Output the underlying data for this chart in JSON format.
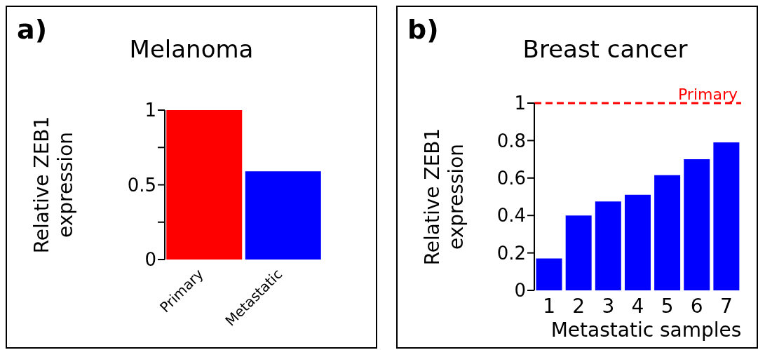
{
  "chart_data": [
    {
      "type": "bar",
      "title": "Melanoma",
      "annotations": [
        "a)"
      ],
      "ylabel": "Relative ZEB1\nexpression",
      "categories": [
        "Primary",
        "Metastatic"
      ],
      "values": [
        1,
        0.59
      ],
      "colors": [
        "#ff0000",
        "#0000ff"
      ],
      "ylim": [
        0,
        1
      ],
      "yticks": [
        0,
        {
          "value": 0.25,
          "label": null
        },
        0.5,
        {
          "value": 0.75,
          "label": null
        },
        1
      ]
    },
    {
      "type": "bar",
      "title": "Breast cancer",
      "annotations": [
        "b)"
      ],
      "xlabel": "Metastatic samples",
      "ylabel": "Relative ZEB1\nexpression",
      "categories": [
        "1",
        "2",
        "3",
        "4",
        "5",
        "6",
        "7"
      ],
      "values": [
        0.17,
        0.4,
        0.475,
        0.51,
        0.615,
        0.7,
        0.79
      ],
      "color": "#0000ff",
      "ylim": [
        0,
        1
      ],
      "yticks": [
        0,
        0.2,
        0.4,
        0.6,
        0.8,
        1
      ],
      "ref_lines": [
        {
          "axis": "y",
          "value": 1,
          "label": "Primary",
          "color": "#ff0000",
          "line_style": "dashed"
        }
      ]
    }
  ]
}
